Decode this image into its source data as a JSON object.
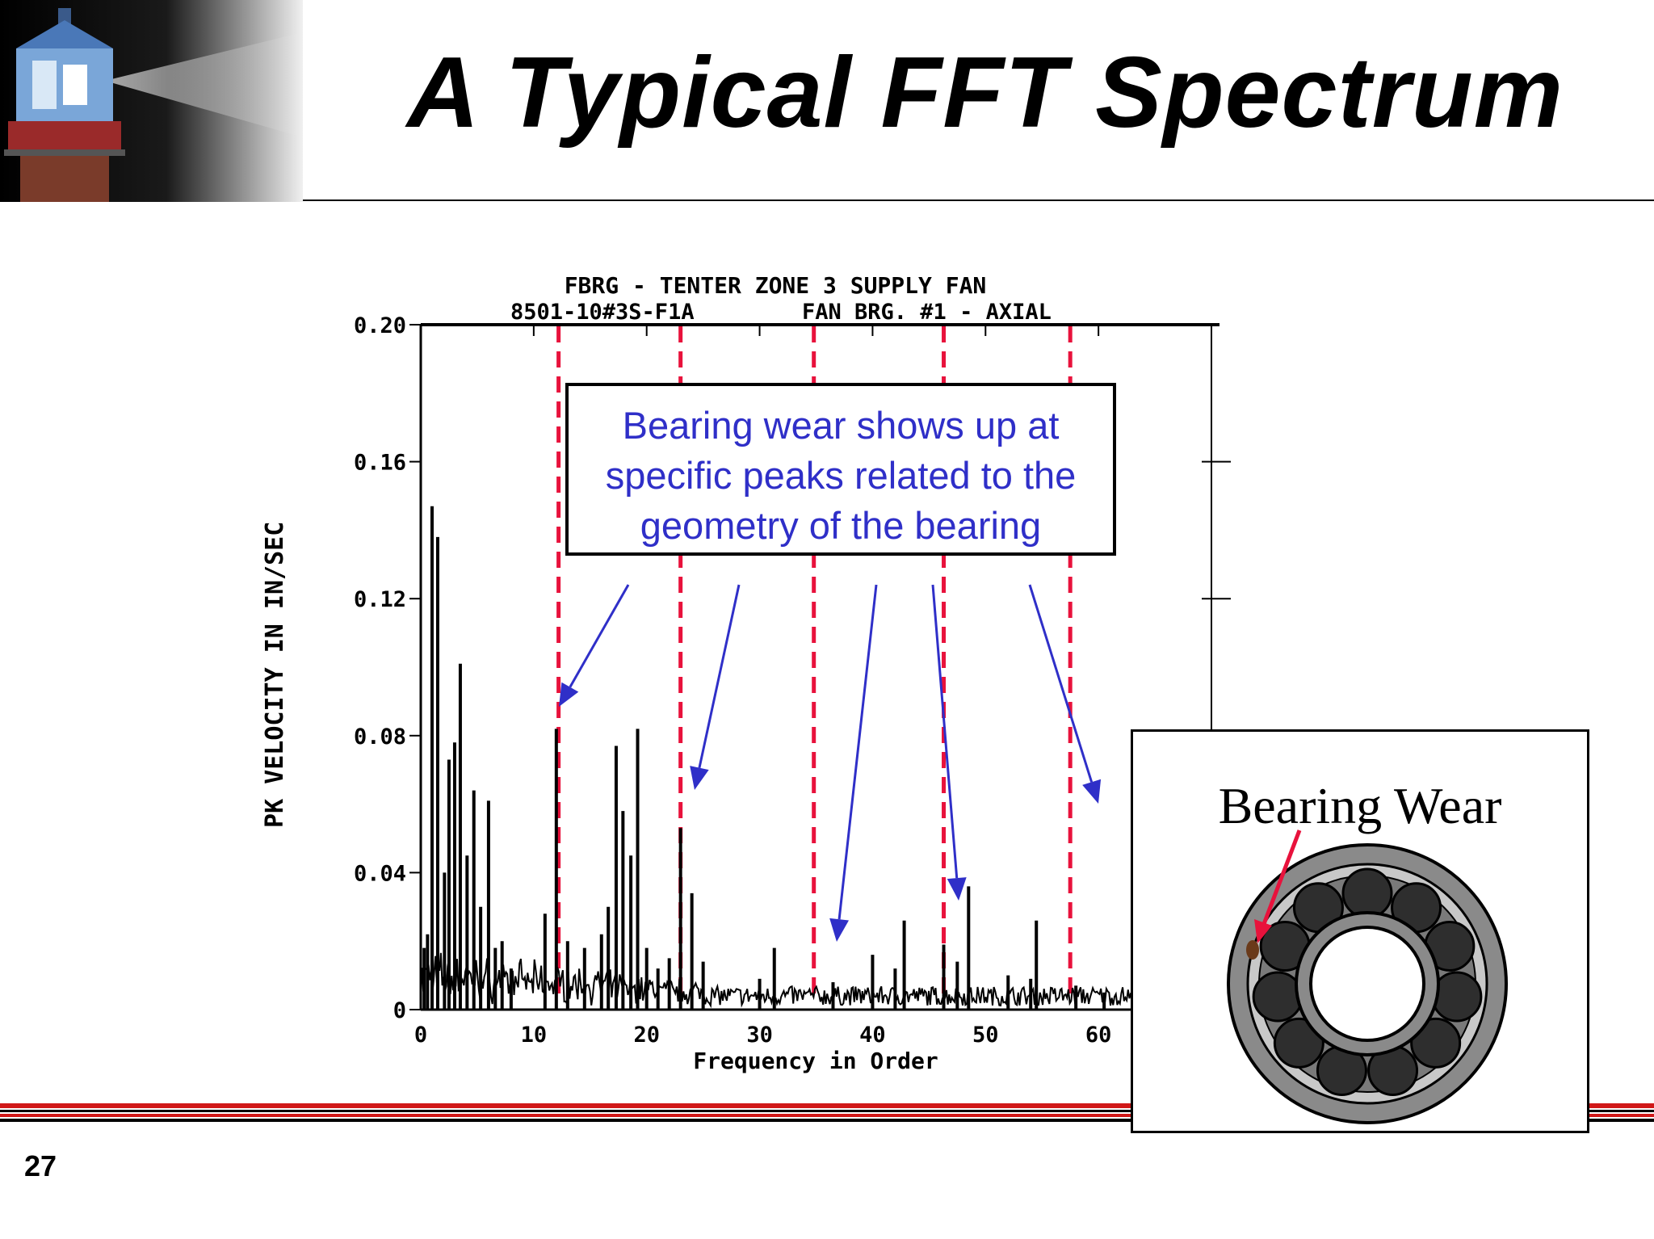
{
  "slide": {
    "title": "A Typical FFT Spectrum",
    "page_number": "27"
  },
  "logo": {
    "icon": "lighthouse-logo-icon"
  },
  "callout": {
    "lines": [
      "Bearing wear shows up at",
      "specific peaks related to the",
      "geometry of the bearing"
    ],
    "color": "#2f2fc8"
  },
  "inset": {
    "title": "Bearing Wear",
    "icon": "ball-bearing-icon"
  },
  "colors": {
    "markers": "#e8123c",
    "arrows": "#2f2fc8",
    "footer": "#d01818"
  },
  "chart_data": {
    "type": "line",
    "title": "FBRG - TENTER ZONE 3 SUPPLY FAN",
    "subtitle_left": "8501-10#3S-F1A",
    "subtitle_right": "FAN BRG. #1 - AXIAL",
    "xlabel": "Frequency in Order",
    "ylabel": "PK VELOCITY IN IN/SEC",
    "xlim": [
      0,
      70
    ],
    "ylim": [
      0,
      0.2
    ],
    "xticks": [
      "0",
      "10",
      "20",
      "30",
      "40",
      "50",
      "60"
    ],
    "yticks": [
      "0",
      "0.04",
      "0.08",
      "0.12",
      "0.16",
      "0.20"
    ],
    "ytick_values": [
      0,
      0.04,
      0.08,
      0.12,
      0.16,
      0.2
    ],
    "xtick_values": [
      0,
      10,
      20,
      30,
      40,
      50,
      60
    ],
    "peaks": [
      {
        "x": 0.3,
        "y": 0.018
      },
      {
        "x": 0.6,
        "y": 0.022
      },
      {
        "x": 1.0,
        "y": 0.147
      },
      {
        "x": 1.5,
        "y": 0.138
      },
      {
        "x": 2.1,
        "y": 0.04
      },
      {
        "x": 2.5,
        "y": 0.073
      },
      {
        "x": 3.0,
        "y": 0.078
      },
      {
        "x": 3.5,
        "y": 0.101
      },
      {
        "x": 4.1,
        "y": 0.045
      },
      {
        "x": 4.7,
        "y": 0.064
      },
      {
        "x": 5.3,
        "y": 0.03
      },
      {
        "x": 6.0,
        "y": 0.061
      },
      {
        "x": 6.6,
        "y": 0.018
      },
      {
        "x": 7.2,
        "y": 0.02
      },
      {
        "x": 8.0,
        "y": 0.012
      },
      {
        "x": 11.0,
        "y": 0.028
      },
      {
        "x": 12.0,
        "y": 0.082
      },
      {
        "x": 13.0,
        "y": 0.02
      },
      {
        "x": 14.5,
        "y": 0.018
      },
      {
        "x": 16.0,
        "y": 0.022
      },
      {
        "x": 16.6,
        "y": 0.03
      },
      {
        "x": 17.3,
        "y": 0.077
      },
      {
        "x": 17.9,
        "y": 0.058
      },
      {
        "x": 18.6,
        "y": 0.045
      },
      {
        "x": 19.2,
        "y": 0.082
      },
      {
        "x": 20.0,
        "y": 0.018
      },
      {
        "x": 21.0,
        "y": 0.012
      },
      {
        "x": 22.0,
        "y": 0.015
      },
      {
        "x": 23.0,
        "y": 0.053
      },
      {
        "x": 24.0,
        "y": 0.034
      },
      {
        "x": 25.0,
        "y": 0.014
      },
      {
        "x": 30.0,
        "y": 0.009
      },
      {
        "x": 31.3,
        "y": 0.018
      },
      {
        "x": 36.5,
        "y": 0.008
      },
      {
        "x": 40.0,
        "y": 0.016
      },
      {
        "x": 42.0,
        "y": 0.012
      },
      {
        "x": 42.8,
        "y": 0.026
      },
      {
        "x": 46.3,
        "y": 0.019
      },
      {
        "x": 47.5,
        "y": 0.014
      },
      {
        "x": 48.5,
        "y": 0.036
      },
      {
        "x": 52.0,
        "y": 0.01
      },
      {
        "x": 54.0,
        "y": 0.009
      },
      {
        "x": 54.5,
        "y": 0.026
      },
      {
        "x": 58.0,
        "y": 0.007
      },
      {
        "x": 60.5,
        "y": 0.005
      },
      {
        "x": 63.0,
        "y": 0.004
      }
    ],
    "noise_floor": 0.004,
    "marker_lines_x": [
      12.2,
      23.0,
      34.8,
      46.3,
      57.5
    ],
    "grid": false,
    "legend": "none"
  }
}
